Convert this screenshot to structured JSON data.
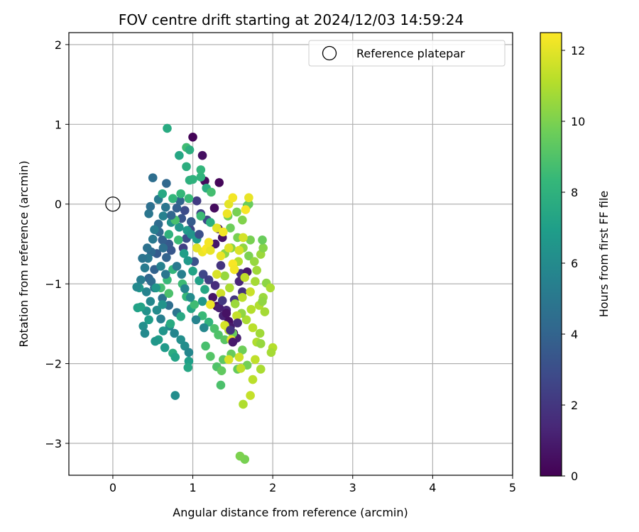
{
  "chart_data": {
    "type": "scatter",
    "title": "FOV centre drift starting at 2024/12/03 14:59:24",
    "xlabel": "Angular distance from reference (arcmin)",
    "ylabel": "Rotation from reference (arcmin)",
    "xlim": [
      -0.55,
      5.0
    ],
    "ylim": [
      -3.4,
      2.15
    ],
    "xticks": [
      0,
      1,
      2,
      3,
      4,
      5
    ],
    "xtick_labels": [
      "0",
      "1",
      "2",
      "3",
      "4",
      "5"
    ],
    "yticks": [
      -3,
      -2,
      -1,
      0,
      1,
      2
    ],
    "ytick_labels": [
      "−3",
      "−2",
      "−1",
      "0",
      "1",
      "2"
    ],
    "grid": true,
    "legend": {
      "position": "top-right",
      "entries": [
        {
          "label": "Reference platepar",
          "marker": "open-circle"
        }
      ]
    },
    "reference_point": {
      "x": 0,
      "y": 0
    },
    "colorbar": {
      "label": "Hours from first FF file",
      "colormap": "viridis",
      "range": [
        0,
        12.5
      ],
      "ticks": [
        0,
        2,
        4,
        6,
        8,
        10,
        12
      ],
      "tick_labels": [
        "0",
        "2",
        "4",
        "6",
        "8",
        "10",
        "12"
      ]
    },
    "colors": {
      "viridis_stops": [
        "#440154",
        "#482878",
        "#3e4989",
        "#31688e",
        "#26828e",
        "#1f9e89",
        "#35b779",
        "#6ece58",
        "#b5de2b",
        "#fde725"
      ]
    },
    "points": [
      [
        1.0,
        0.84,
        0.1
      ],
      [
        1.12,
        0.61,
        0.5
      ],
      [
        1.15,
        0.29,
        0.3
      ],
      [
        1.33,
        0.27,
        0.2
      ],
      [
        1.27,
        -0.05,
        0.4
      ],
      [
        1.32,
        -0.31,
        1.0
      ],
      [
        1.37,
        -0.42,
        0.6
      ],
      [
        1.28,
        -0.5,
        0.8
      ],
      [
        1.25,
        -1.17,
        0.7
      ],
      [
        1.3,
        -1.28,
        0.3
      ],
      [
        1.38,
        -1.4,
        1.2
      ],
      [
        1.45,
        -1.47,
        0.5
      ],
      [
        1.47,
        -1.54,
        0.9
      ],
      [
        1.51,
        -1.62,
        0.4
      ],
      [
        1.55,
        -1.68,
        1.1
      ],
      [
        1.42,
        -1.33,
        1.4
      ],
      [
        1.6,
        -0.87,
        1.6
      ],
      [
        1.58,
        -0.97,
        1.3
      ],
      [
        1.68,
        -0.85,
        0.9
      ],
      [
        1.62,
        -1.1,
        1.8
      ],
      [
        1.52,
        -1.2,
        2.0
      ],
      [
        1.35,
        -0.77,
        1.9
      ],
      [
        1.05,
        0.04,
        2.2
      ],
      [
        1.1,
        -0.12,
        2.5
      ],
      [
        1.18,
        -0.2,
        2.8
      ],
      [
        0.97,
        -0.32,
        2.6
      ],
      [
        0.92,
        -0.43,
        3.0
      ],
      [
        0.88,
        -0.55,
        2.4
      ],
      [
        0.86,
        -0.18,
        3.3
      ],
      [
        0.9,
        -0.08,
        2.9
      ],
      [
        1.02,
        -0.72,
        3.2
      ],
      [
        0.7,
        -0.5,
        3.5
      ],
      [
        0.62,
        -0.45,
        3.8
      ],
      [
        0.55,
        -0.62,
        3.6
      ],
      [
        0.52,
        -0.82,
        3.9
      ],
      [
        0.45,
        -0.93,
        4.1
      ],
      [
        0.58,
        -0.35,
        4.2
      ],
      [
        0.48,
        -0.6,
        4.3
      ],
      [
        0.67,
        -0.67,
        4.0
      ],
      [
        0.73,
        -0.58,
        3.4
      ],
      [
        0.48,
        -0.97,
        4.4
      ],
      [
        0.52,
        -1.05,
        4.6
      ],
      [
        0.62,
        -1.18,
        4.7
      ],
      [
        0.7,
        -1.27,
        4.5
      ],
      [
        0.8,
        -1.36,
        4.8
      ],
      [
        0.5,
        0.33,
        4.5
      ],
      [
        0.67,
        0.26,
        4.2
      ],
      [
        0.84,
        0.04,
        4.0
      ],
      [
        0.45,
        -0.12,
        4.9
      ],
      [
        0.47,
        -0.03,
        4.6
      ],
      [
        0.57,
        0.06,
        5.2
      ],
      [
        0.63,
        -0.15,
        5.5
      ],
      [
        0.44,
        -0.68,
        5.0
      ],
      [
        0.35,
        -0.95,
        5.3
      ],
      [
        0.42,
        -1.1,
        5.6
      ],
      [
        0.47,
        -1.22,
        5.8
      ],
      [
        0.55,
        -1.33,
        6.0
      ],
      [
        0.6,
        -1.44,
        5.4
      ],
      [
        0.71,
        -1.53,
        5.9
      ],
      [
        0.77,
        -1.62,
        5.7
      ],
      [
        0.85,
        -1.7,
        6.2
      ],
      [
        0.9,
        -1.78,
        6.1
      ],
      [
        0.95,
        -1.86,
        5.8
      ],
      [
        0.78,
        -2.4,
        6.1
      ],
      [
        0.73,
        -0.23,
        6.3
      ],
      [
        0.83,
        -0.29,
        6.5
      ],
      [
        0.93,
        -0.33,
        6.8
      ],
      [
        0.98,
        -0.38,
        6.4
      ],
      [
        1.05,
        -0.44,
        6.9
      ],
      [
        0.89,
        -0.62,
        7.0
      ],
      [
        0.94,
        -0.71,
        6.7
      ],
      [
        1.0,
        -0.84,
        7.2
      ],
      [
        1.08,
        -0.96,
        7.1
      ],
      [
        1.15,
        -1.07,
        7.4
      ],
      [
        1.12,
        -1.22,
        6.6
      ],
      [
        0.98,
        -1.31,
        7.3
      ],
      [
        0.85,
        -1.41,
        7.5
      ],
      [
        0.72,
        -1.5,
        7.6
      ],
      [
        0.63,
        -1.59,
        6.5
      ],
      [
        0.57,
        -1.7,
        7.0
      ],
      [
        0.65,
        -1.8,
        6.8
      ],
      [
        0.75,
        -1.87,
        7.7
      ],
      [
        0.78,
        -1.92,
        7.2
      ],
      [
        0.95,
        -1.97,
        7.0
      ],
      [
        0.94,
        -2.05,
        7.4
      ],
      [
        0.42,
        -1.34,
        6.3
      ],
      [
        0.38,
        -1.53,
        6.2
      ],
      [
        0.4,
        -1.62,
        5.9
      ],
      [
        0.53,
        -1.72,
        6.6
      ],
      [
        0.33,
        -1.05,
        6.7
      ],
      [
        0.31,
        -1.3,
        7.1
      ],
      [
        0.68,
        0.95,
        7.6
      ],
      [
        0.83,
        0.61,
        7.4
      ],
      [
        0.92,
        0.47,
        7.8
      ],
      [
        0.96,
        0.3,
        7.9
      ],
      [
        1.0,
        0.31,
        8.0
      ],
      [
        1.1,
        0.34,
        8.1
      ],
      [
        1.17,
        0.2,
        7.7
      ],
      [
        0.62,
        0.13,
        7.5
      ],
      [
        0.75,
        0.07,
        8.2
      ],
      [
        0.85,
        0.13,
        8.3
      ],
      [
        0.95,
        0.07,
        8.4
      ],
      [
        1.1,
        -0.15,
        8.5
      ],
      [
        1.22,
        -0.23,
        7.9
      ],
      [
        0.92,
        0.71,
        8.6
      ],
      [
        0.96,
        0.68,
        7.8
      ],
      [
        1.23,
        0.15,
        8.7
      ],
      [
        1.1,
        0.43,
        8.2
      ],
      [
        0.78,
        -0.2,
        8.8
      ],
      [
        0.7,
        -0.38,
        8.0
      ],
      [
        0.82,
        -0.45,
        8.5
      ],
      [
        0.75,
        -0.82,
        8.2
      ],
      [
        0.68,
        -0.95,
        8.4
      ],
      [
        0.6,
        -1.05,
        8.7
      ],
      [
        0.7,
        -1.12,
        8.9
      ],
      [
        0.87,
        -1.0,
        8.5
      ],
      [
        0.92,
        -1.16,
        8.3
      ],
      [
        1.02,
        -1.26,
        8.6
      ],
      [
        1.12,
        -1.4,
        8.4
      ],
      [
        1.2,
        -1.48,
        8.1
      ],
      [
        1.27,
        -1.56,
        8.9
      ],
      [
        1.32,
        -1.64,
        9.0
      ],
      [
        1.16,
        -1.78,
        8.8
      ],
      [
        1.22,
        -1.91,
        9.1
      ],
      [
        1.38,
        -1.95,
        9.3
      ],
      [
        1.3,
        -2.04,
        9.0
      ],
      [
        1.36,
        -2.09,
        9.4
      ],
      [
        1.48,
        -1.88,
        9.5
      ],
      [
        1.4,
        -1.7,
        9.2
      ],
      [
        1.5,
        -1.62,
        9.6
      ],
      [
        1.62,
        -1.83,
        9.7
      ],
      [
        1.68,
        -2.02,
        9.8
      ],
      [
        1.56,
        -2.07,
        9.5
      ],
      [
        1.35,
        -2.27,
        8.9
      ],
      [
        1.65,
        -3.2,
        9.9
      ],
      [
        1.59,
        -3.16,
        10.0
      ],
      [
        1.44,
        -0.15,
        9.8
      ],
      [
        1.55,
        -0.1,
        9.9
      ],
      [
        1.62,
        -0.2,
        10.1
      ],
      [
        1.68,
        -0.02,
        9.4
      ],
      [
        1.7,
        0.0,
        9.6
      ],
      [
        1.47,
        -0.3,
        9.7
      ],
      [
        1.56,
        -0.42,
        9.9
      ],
      [
        1.48,
        -0.55,
        10.2
      ],
      [
        1.4,
        -0.62,
        10.3
      ],
      [
        1.63,
        -0.55,
        10.4
      ],
      [
        1.7,
        -0.65,
        10.0
      ],
      [
        1.77,
        -0.72,
        10.5
      ],
      [
        1.85,
        -0.63,
        10.6
      ],
      [
        1.88,
        -0.55,
        10.2
      ],
      [
        1.87,
        -0.45,
        9.6
      ],
      [
        1.72,
        -0.45,
        9.9
      ],
      [
        1.8,
        -0.83,
        10.7
      ],
      [
        1.78,
        -0.97,
        10.8
      ],
      [
        1.92,
        -0.99,
        10.3
      ],
      [
        1.97,
        -1.05,
        10.9
      ],
      [
        1.88,
        -1.17,
        10.6
      ],
      [
        1.83,
        -1.27,
        11.0
      ],
      [
        1.9,
        -1.35,
        10.8
      ],
      [
        1.87,
        -1.22,
        10.4
      ],
      [
        1.73,
        -1.32,
        11.1
      ],
      [
        1.67,
        -1.45,
        10.9
      ],
      [
        1.75,
        -1.55,
        11.2
      ],
      [
        1.84,
        -1.62,
        10.7
      ],
      [
        1.8,
        -1.73,
        11.0
      ],
      [
        1.85,
        -1.75,
        10.5
      ],
      [
        2.0,
        -1.8,
        11.1
      ],
      [
        1.98,
        -1.86,
        10.8
      ],
      [
        1.78,
        -1.95,
        11.3
      ],
      [
        1.85,
        -2.07,
        10.9
      ],
      [
        1.75,
        -2.2,
        11.2
      ],
      [
        1.72,
        -2.4,
        11.4
      ],
      [
        1.63,
        -2.51,
        11.0
      ],
      [
        1.61,
        -1.37,
        10.4
      ],
      [
        1.53,
        -1.25,
        10.6
      ],
      [
        1.46,
        -1.05,
        10.9
      ],
      [
        1.4,
        -0.9,
        10.5
      ],
      [
        1.52,
        -0.82,
        10.8
      ],
      [
        1.57,
        -0.72,
        11.1
      ],
      [
        1.65,
        -0.92,
        11.3
      ],
      [
        1.72,
        -1.1,
        11.5
      ],
      [
        1.62,
        -1.17,
        11.2
      ],
      [
        1.55,
        -1.4,
        11.4
      ],
      [
        1.45,
        -1.58,
        11.1
      ],
      [
        1.35,
        -1.12,
        11.6
      ],
      [
        1.3,
        -0.88,
        11.8
      ],
      [
        1.4,
        -1.52,
        11.7
      ],
      [
        1.48,
        -1.7,
        11.9
      ],
      [
        1.58,
        -1.92,
        11.6
      ],
      [
        1.6,
        -2.06,
        11.3
      ],
      [
        1.45,
        -1.95,
        11.8
      ],
      [
        1.45,
        0.0,
        12.0
      ],
      [
        1.43,
        -0.12,
        12.2
      ],
      [
        1.5,
        0.08,
        12.3
      ],
      [
        1.7,
        0.08,
        12.1
      ],
      [
        1.66,
        -0.07,
        12.4
      ],
      [
        1.3,
        -0.3,
        12.0
      ],
      [
        1.38,
        -0.35,
        12.3
      ],
      [
        1.12,
        -0.6,
        12.2
      ],
      [
        1.17,
        -0.56,
        12.4
      ],
      [
        1.22,
        -0.58,
        12.1
      ],
      [
        1.05,
        -0.55,
        12.0
      ],
      [
        1.2,
        -0.48,
        12.3
      ],
      [
        1.22,
        -1.26,
        12.2
      ],
      [
        1.5,
        -0.75,
        12.4
      ],
      [
        1.35,
        -0.65,
        12.1
      ],
      [
        1.52,
        -0.82,
        12.3
      ],
      [
        1.45,
        -0.55,
        11.9
      ],
      [
        1.63,
        -0.42,
        11.7
      ],
      [
        1.58,
        -0.58,
        11.8
      ],
      [
        0.6,
        -0.78,
        5.5
      ],
      [
        0.66,
        -0.88,
        4.9
      ],
      [
        0.8,
        -0.78,
        5.1
      ],
      [
        0.86,
        -0.88,
        5.4
      ],
      [
        0.9,
        -1.06,
        5.7
      ],
      [
        0.97,
        -1.17,
        6.0
      ],
      [
        1.04,
        -1.45,
        5.6
      ],
      [
        1.14,
        -1.55,
        5.8
      ],
      [
        0.62,
        -1.26,
        6.4
      ],
      [
        0.54,
        -1.05,
        6.6
      ],
      [
        0.4,
        -0.8,
        5.2
      ],
      [
        0.43,
        -0.55,
        4.7
      ],
      [
        0.57,
        -0.25,
        4.4
      ],
      [
        0.73,
        -0.14,
        4.1
      ],
      [
        0.8,
        -0.05,
        3.8
      ],
      [
        0.98,
        -0.22,
        3.6
      ],
      [
        1.08,
        -0.38,
        3.1
      ],
      [
        1.13,
        -0.88,
        2.7
      ],
      [
        1.2,
        -0.95,
        2.3
      ],
      [
        1.28,
        -1.02,
        1.6
      ],
      [
        1.33,
        -1.3,
        1.1
      ],
      [
        1.42,
        -1.37,
        0.6
      ],
      [
        1.47,
        -1.58,
        1.9
      ],
      [
        1.56,
        -1.49,
        1.5
      ],
      [
        1.5,
        -1.73,
        0.9
      ],
      [
        1.37,
        -1.21,
        2.1
      ],
      [
        0.37,
        -0.68,
        4.8
      ],
      [
        0.3,
        -1.04,
        5.9
      ],
      [
        0.45,
        -1.45,
        6.9
      ],
      [
        0.35,
        -1.29,
        7.2
      ],
      [
        0.5,
        -0.44,
        5.0
      ],
      [
        0.66,
        -0.04,
        4.9
      ],
      [
        0.52,
        -0.32,
        5.3
      ],
      [
        0.63,
        -0.55,
        4.6
      ]
    ]
  }
}
